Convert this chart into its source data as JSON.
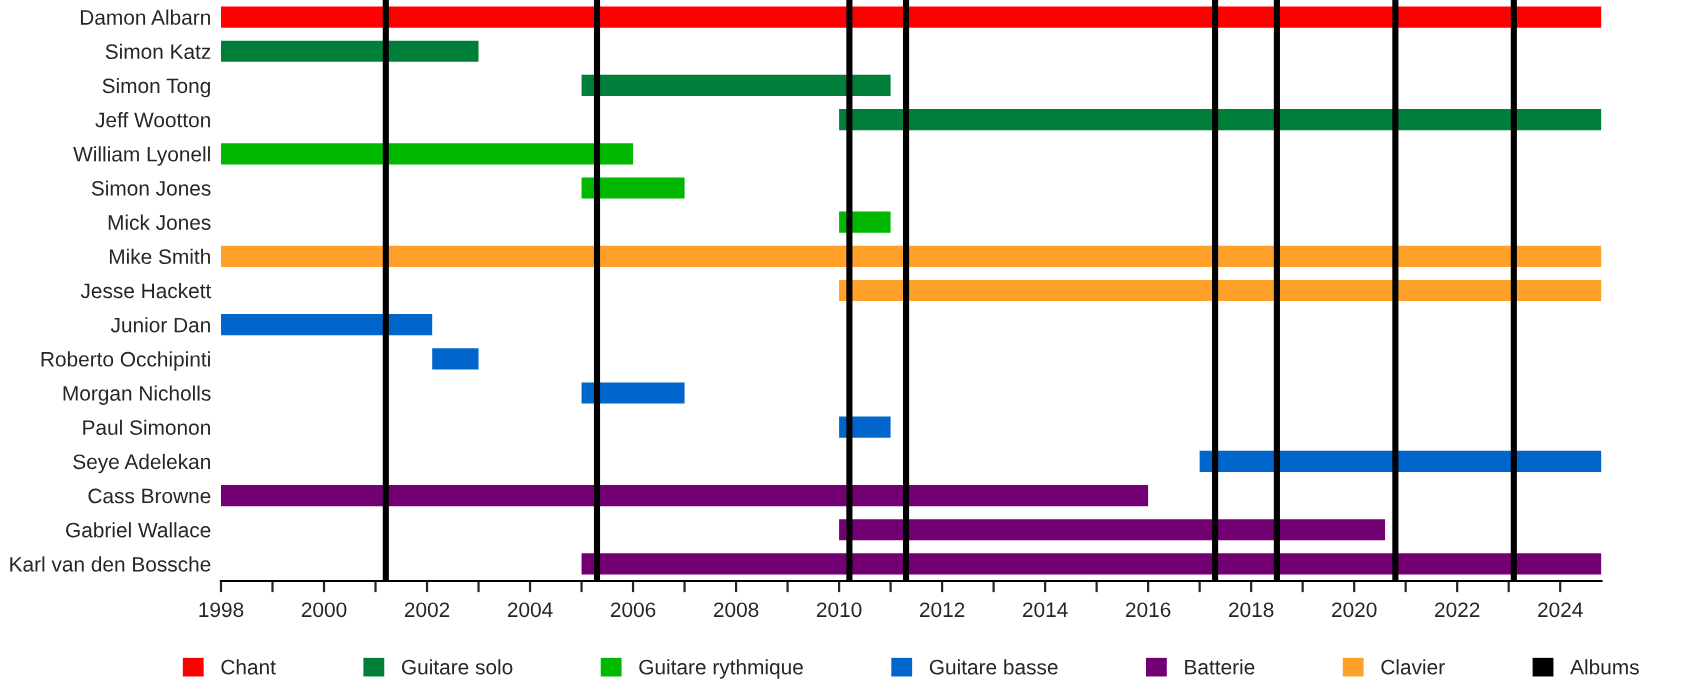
{
  "chart_data": {
    "type": "bar",
    "orientation": "horizontal",
    "categories": [
      "Damon Albarn",
      "Simon Katz",
      "Simon Tong",
      "Jeff Wootton",
      "William Lyonell",
      "Simon Jones",
      "Mick Jones",
      "Mike Smith",
      "Jesse Hackett",
      "Junior Dan",
      "Roberto Occhipinti",
      "Morgan Nicholls",
      "Paul Simonon",
      "Seye Adelekan",
      "Cass Browne",
      "Gabriel Wallace",
      "Karl van den Bossche"
    ],
    "series": [
      {
        "name": "Chant",
        "color": "#ff0000",
        "base": [
          1998,
          null,
          null,
          null,
          null,
          null,
          null,
          null,
          null,
          null,
          null,
          null,
          null,
          null,
          null,
          null,
          null
        ],
        "values": [
          26.8,
          null,
          null,
          null,
          null,
          null,
          null,
          null,
          null,
          null,
          null,
          null,
          null,
          null,
          null,
          null,
          null
        ]
      },
      {
        "name": "Guitare solo",
        "color": "#007f3a",
        "base": [
          null,
          1998,
          2005,
          2010,
          null,
          null,
          null,
          null,
          null,
          null,
          null,
          null,
          null,
          null,
          null,
          null,
          null
        ],
        "values": [
          null,
          5,
          6,
          14.8,
          null,
          null,
          null,
          null,
          null,
          null,
          null,
          null,
          null,
          null,
          null,
          null,
          null
        ]
      },
      {
        "name": "Guitare rythmique",
        "color": "#00b800",
        "base": [
          null,
          null,
          null,
          null,
          1998,
          2005,
          2010,
          null,
          null,
          null,
          null,
          null,
          null,
          null,
          null,
          null,
          null
        ],
        "values": [
          null,
          null,
          null,
          null,
          8,
          2,
          1,
          null,
          null,
          null,
          null,
          null,
          null,
          null,
          null,
          null,
          null
        ]
      },
      {
        "name": "Guitare basse",
        "color": "#0066cc",
        "base": [
          null,
          null,
          null,
          null,
          null,
          null,
          null,
          null,
          null,
          1998,
          2002.1,
          2005,
          2010,
          2017,
          null,
          null,
          null
        ],
        "values": [
          null,
          null,
          null,
          null,
          null,
          null,
          null,
          null,
          null,
          4.1,
          0.9,
          2,
          1,
          7.8,
          null,
          null,
          null
        ]
      },
      {
        "name": "Batterie",
        "color": "#730073",
        "base": [
          null,
          null,
          null,
          null,
          null,
          null,
          null,
          null,
          null,
          null,
          null,
          null,
          null,
          null,
          1998,
          2010,
          2005
        ],
        "values": [
          null,
          null,
          null,
          null,
          null,
          null,
          null,
          null,
          null,
          null,
          null,
          null,
          null,
          null,
          18,
          10.6,
          19.8
        ]
      },
      {
        "name": "Clavier",
        "color": "#ffa02a",
        "base": [
          null,
          null,
          null,
          null,
          null,
          null,
          null,
          1998,
          2010,
          null,
          null,
          null,
          null,
          null,
          null,
          null,
          null
        ],
        "values": [
          null,
          null,
          null,
          null,
          null,
          null,
          null,
          26.8,
          14.8,
          null,
          null,
          null,
          null,
          null,
          null,
          null,
          null
        ]
      }
    ],
    "ref_lines": [
      {
        "axis": "x",
        "value": 2001.2,
        "label": "Albums",
        "color": "#000000"
      },
      {
        "axis": "x",
        "value": 2005.3,
        "label": null,
        "color": "#000000"
      },
      {
        "axis": "x",
        "value": 2010.2,
        "label": null,
        "color": "#000000"
      },
      {
        "axis": "x",
        "value": 2011.3,
        "label": null,
        "color": "#000000"
      },
      {
        "axis": "x",
        "value": 2017.3,
        "label": null,
        "color": "#000000"
      },
      {
        "axis": "x",
        "value": 2018.5,
        "label": null,
        "color": "#000000"
      },
      {
        "axis": "x",
        "value": 2020.8,
        "label": null,
        "color": "#000000"
      },
      {
        "axis": "x",
        "value": 2023.1,
        "label": null,
        "color": "#000000"
      }
    ],
    "xlim": [
      1998,
      2024.8
    ],
    "xticks": [
      1998,
      {
        "value": 1999,
        "label": null
      },
      2000,
      {
        "value": 2001,
        "label": null
      },
      2002,
      {
        "value": 2003,
        "label": null
      },
      2004,
      {
        "value": 2005,
        "label": null
      },
      2006,
      {
        "value": 2007,
        "label": null
      },
      2008,
      {
        "value": 2009,
        "label": null
      },
      2010,
      {
        "value": 2011,
        "label": null
      },
      2012,
      {
        "value": 2013,
        "label": null
      },
      2014,
      {
        "value": 2015,
        "label": null
      },
      2016,
      {
        "value": 2017,
        "label": null
      },
      2018,
      {
        "value": 2019,
        "label": null
      },
      2020,
      {
        "value": 2021,
        "label": null
      },
      2022,
      {
        "value": 2023,
        "label": null
      },
      2024
    ],
    "legend": "bottom",
    "grid": false
  }
}
